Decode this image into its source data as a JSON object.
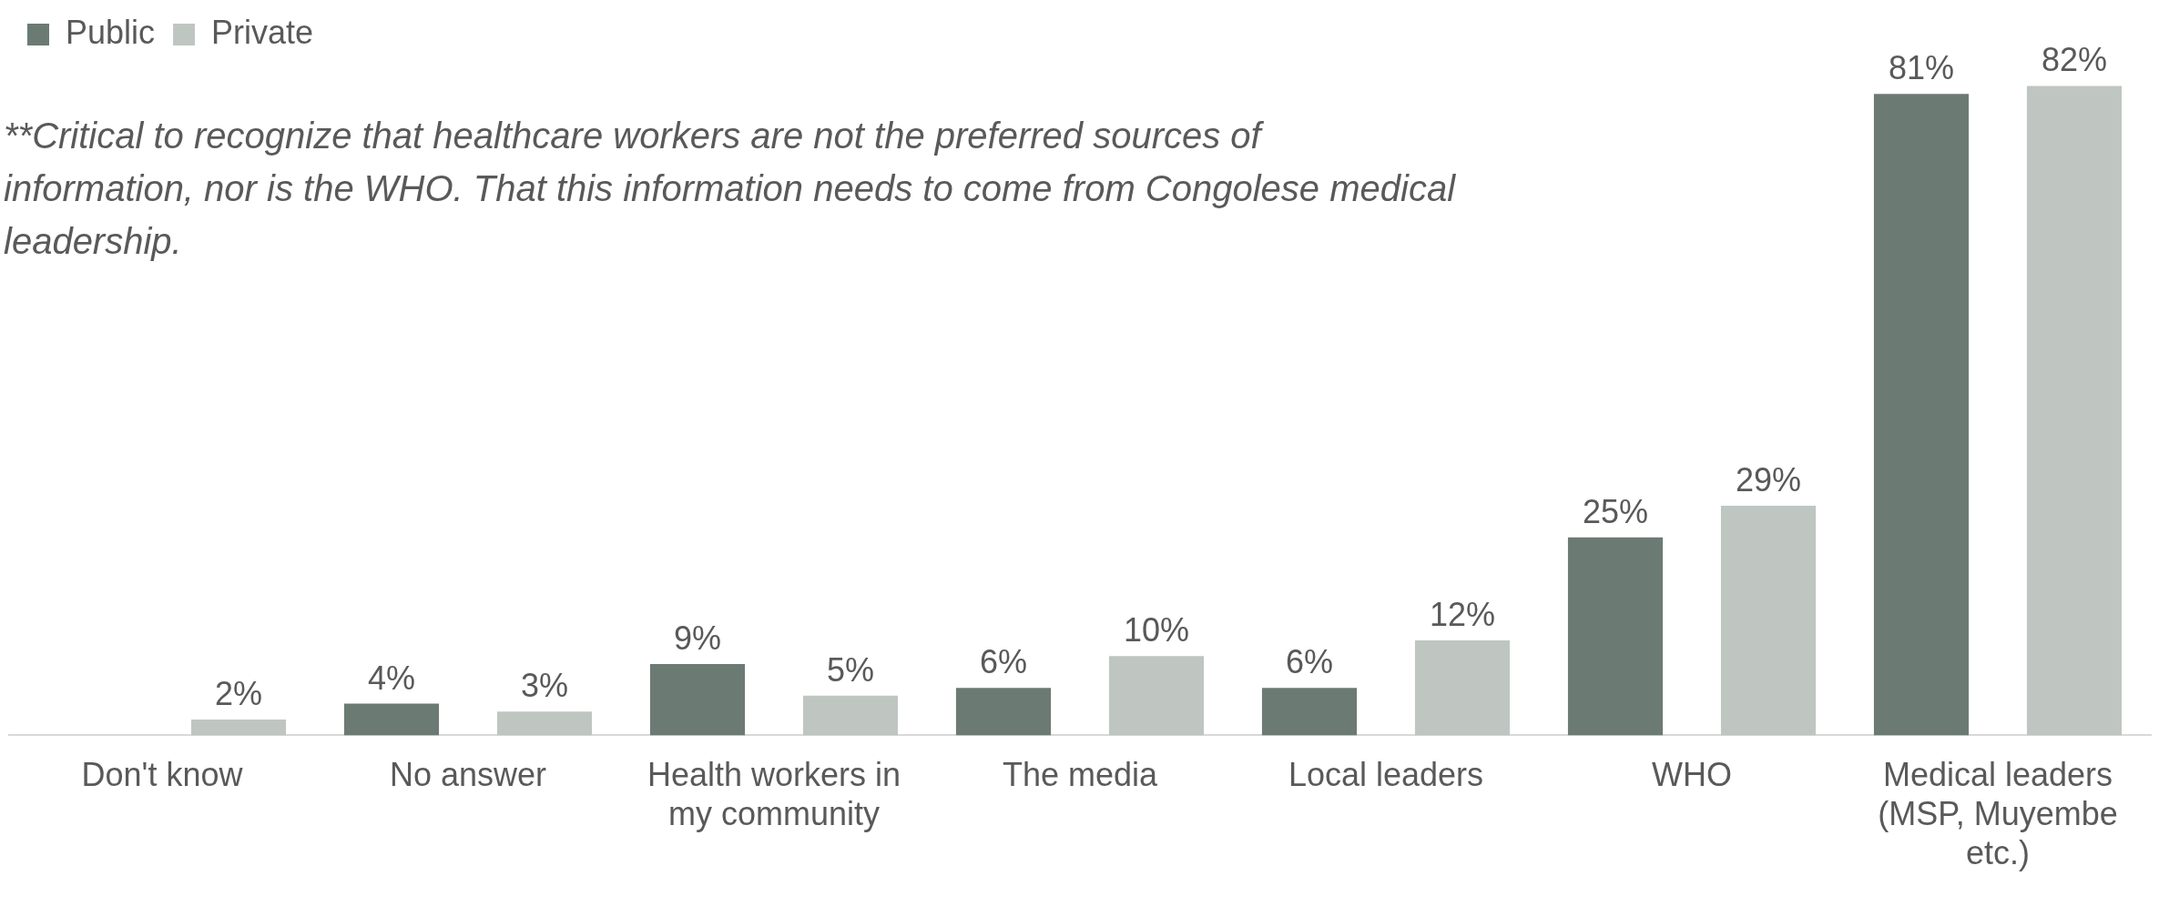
{
  "chart_data": {
    "type": "bar",
    "categories": [
      "Don't know",
      "No answer",
      "Health workers in my community",
      "The media",
      "Local leaders",
      "WHO",
      "Medical leaders (MSP, Muyembe etc.)"
    ],
    "series": [
      {
        "name": "Public",
        "color": "#6b7b73",
        "values": [
          null,
          4,
          9,
          6,
          6,
          25,
          81
        ],
        "value_labels": [
          null,
          "4%",
          "9%",
          "6%",
          "6%",
          "25%",
          "81%"
        ]
      },
      {
        "name": "Private",
        "color": "#bfc6c2",
        "values": [
          2,
          3,
          5,
          10,
          12,
          29,
          82
        ],
        "value_labels": [
          "2%",
          "3%",
          "5%",
          "10%",
          "12%",
          "29%",
          "82%"
        ]
      }
    ],
    "legend": "top left",
    "grid": false,
    "tick_labels": "x",
    "annotations": [
      "**Critical to recognize that healthcare workers are not the preferred sources of information, nor is the WHO. That this information needs to come from Congolese medical leadership."
    ]
  }
}
